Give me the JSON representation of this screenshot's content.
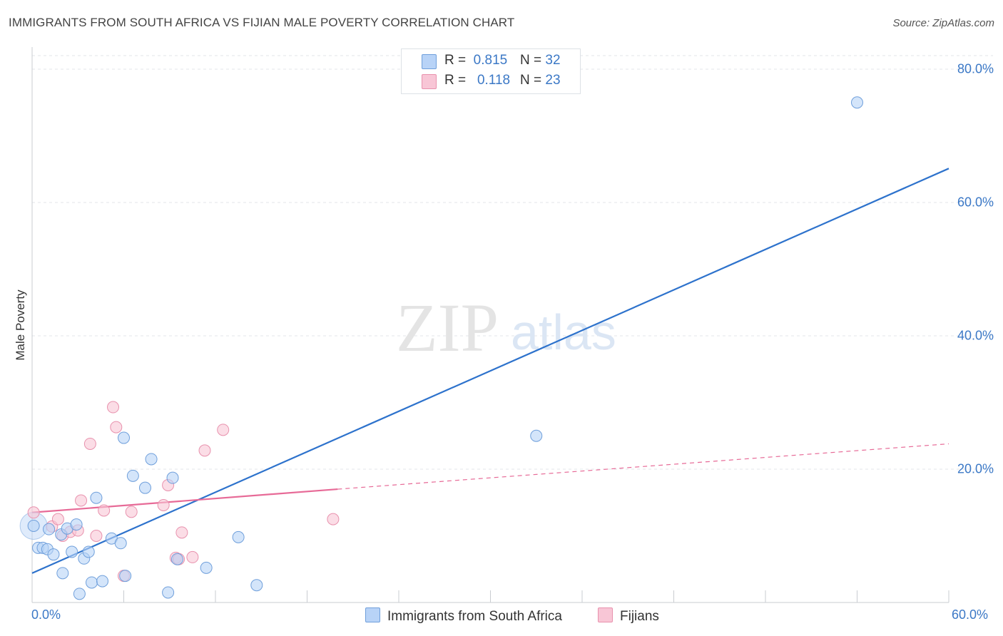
{
  "title": "IMMIGRANTS FROM SOUTH AFRICA VS FIJIAN MALE POVERTY CORRELATION CHART",
  "source": "Source: ZipAtlas.com",
  "watermark": {
    "zip": "ZIP",
    "atlas": "atlas"
  },
  "legend": {
    "rows": [
      {
        "r_label": "R =",
        "r_value": "0.815",
        "n_label": "N =",
        "n_value": "32"
      },
      {
        "r_label": "R =",
        "r_value": "0.118",
        "n_label": "N =",
        "n_value": "23"
      }
    ]
  },
  "colors": {
    "blue_fill": "#b8d3f7",
    "blue_stroke": "#6f9fdb",
    "blue_line": "#2d72cc",
    "pink_fill": "#f8c6d6",
    "pink_stroke": "#e891ad",
    "pink_line": "#e76a97",
    "grid": "#e3e6ea",
    "tick_text": "#3b78c6"
  },
  "chart_data": {
    "type": "scatter",
    "title": "IMMIGRANTS FROM SOUTH AFRICA VS FIJIAN MALE POVERTY CORRELATION CHART",
    "xlabel": "",
    "ylabel": "Male Poverty",
    "xlim": [
      0,
      60
    ],
    "ylim": [
      0,
      80
    ],
    "x_tick_labels": [
      "0.0%",
      "60.0%"
    ],
    "y_ticks": [
      20,
      40,
      60,
      80
    ],
    "y_tick_labels": [
      "20.0%",
      "40.0%",
      "60.0%",
      "80.0%"
    ],
    "grid": true,
    "series": [
      {
        "name": "Immigrants from South Africa",
        "color": "#6f9fdb",
        "R": 0.815,
        "N": 32,
        "trend": {
          "x": [
            0,
            60
          ],
          "y": [
            4.4,
            65.1
          ],
          "style": "solid"
        },
        "points": [
          [
            0.1,
            11.5
          ],
          [
            0.4,
            8.2
          ],
          [
            0.7,
            8.2
          ],
          [
            1.0,
            8.0
          ],
          [
            1.4,
            7.2
          ],
          [
            1.9,
            10.2
          ],
          [
            2.0,
            4.4
          ],
          [
            2.3,
            11.1
          ],
          [
            2.6,
            7.6
          ],
          [
            2.9,
            11.7
          ],
          [
            3.1,
            1.3
          ],
          [
            3.4,
            6.6
          ],
          [
            3.7,
            7.6
          ],
          [
            3.9,
            3.0
          ],
          [
            4.2,
            15.7
          ],
          [
            4.6,
            3.2
          ],
          [
            5.2,
            9.6
          ],
          [
            5.8,
            8.9
          ],
          [
            6.0,
            24.7
          ],
          [
            6.1,
            4.0
          ],
          [
            6.6,
            19.0
          ],
          [
            7.4,
            17.2
          ],
          [
            7.8,
            21.5
          ],
          [
            8.9,
            1.5
          ],
          [
            9.2,
            18.7
          ],
          [
            9.5,
            6.5
          ],
          [
            11.4,
            5.2
          ],
          [
            13.5,
            9.8
          ],
          [
            14.7,
            2.6
          ],
          [
            33.0,
            25.0
          ],
          [
            54.0,
            75.0
          ],
          [
            1.1,
            11.0
          ]
        ]
      },
      {
        "name": "Fijians",
        "color": "#e891ad",
        "R": 0.118,
        "N": 23,
        "trend": {
          "x": [
            0,
            20
          ],
          "y": [
            13.5,
            17.0
          ],
          "style": "solid",
          "dashed_extension": {
            "x": [
              20,
              60
            ],
            "y": [
              17.0,
              23.8
            ]
          }
        },
        "points": [
          [
            0.1,
            13.5
          ],
          [
            1.3,
            11.4
          ],
          [
            1.7,
            12.5
          ],
          [
            2.0,
            10.0
          ],
          [
            2.5,
            10.6
          ],
          [
            3.0,
            10.8
          ],
          [
            3.2,
            15.3
          ],
          [
            3.8,
            23.8
          ],
          [
            4.2,
            10.0
          ],
          [
            4.7,
            13.8
          ],
          [
            5.3,
            29.3
          ],
          [
            5.5,
            26.3
          ],
          [
            6.0,
            4.0
          ],
          [
            6.5,
            13.6
          ],
          [
            8.6,
            14.6
          ],
          [
            8.9,
            17.6
          ],
          [
            9.4,
            6.7
          ],
          [
            9.6,
            6.5
          ],
          [
            9.8,
            10.5
          ],
          [
            10.5,
            6.8
          ],
          [
            11.3,
            22.8
          ],
          [
            12.5,
            25.9
          ],
          [
            19.7,
            12.5
          ]
        ]
      }
    ]
  },
  "bottom_legend": [
    "Immigrants from South Africa",
    "Fijians"
  ]
}
